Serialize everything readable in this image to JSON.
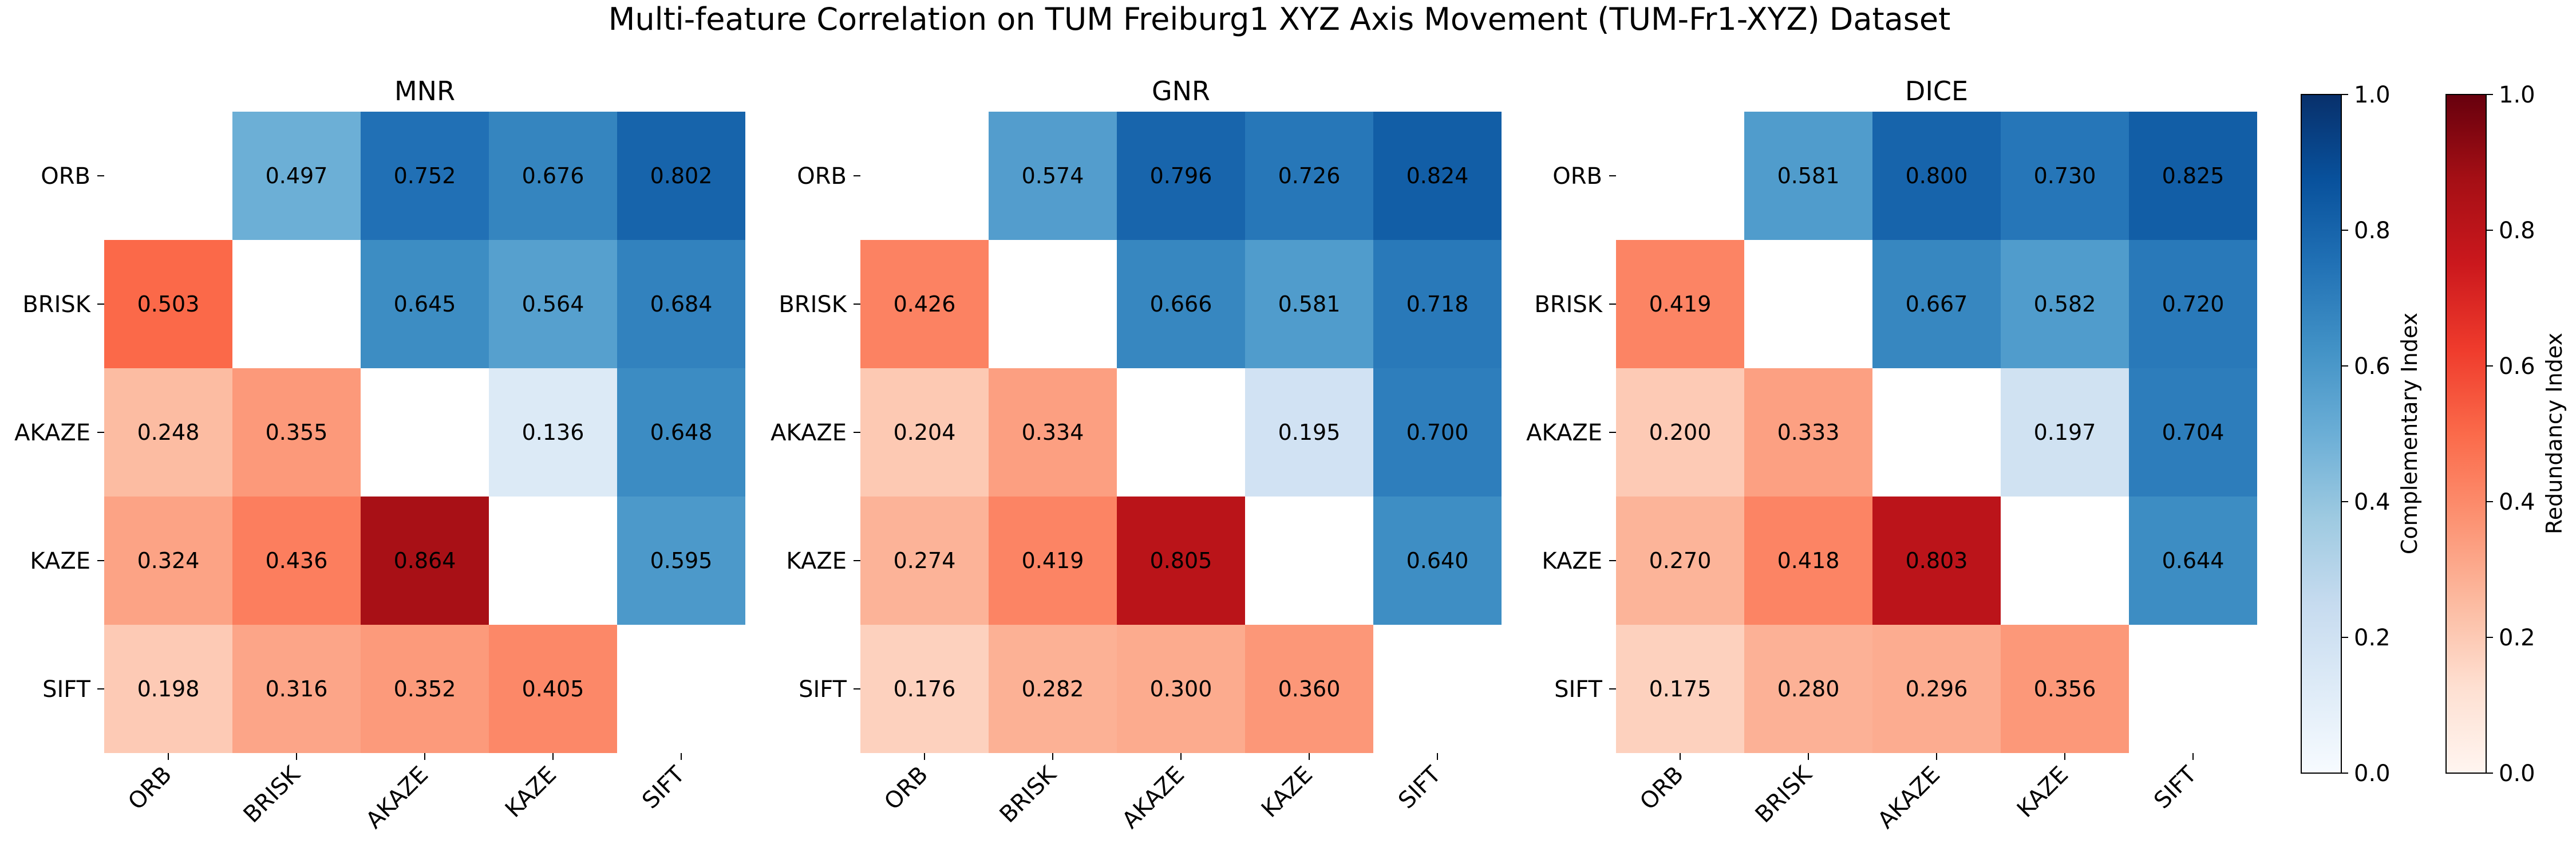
{
  "figure": {
    "title": "Multi-feature Correlation on TUM Freiburg1 XYZ Axis Movement (TUM-Fr1-XYZ) Dataset"
  },
  "chart_data": [
    {
      "type": "heatmap",
      "title": "MNR",
      "rows": [
        "ORB",
        "BRISK",
        "AKAZE",
        "KAZE",
        "SIFT"
      ],
      "cols": [
        "ORB",
        "BRISK",
        "AKAZE",
        "KAZE",
        "SIFT"
      ],
      "values": [
        [
          null,
          0.497,
          0.752,
          0.676,
          0.802
        ],
        [
          0.503,
          null,
          0.645,
          0.564,
          0.684
        ],
        [
          0.248,
          0.355,
          null,
          0.136,
          0.648
        ],
        [
          0.324,
          0.436,
          0.864,
          null,
          0.595
        ],
        [
          0.198,
          0.316,
          0.352,
          0.405,
          null
        ]
      ]
    },
    {
      "type": "heatmap",
      "title": "GNR",
      "rows": [
        "ORB",
        "BRISK",
        "AKAZE",
        "KAZE",
        "SIFT"
      ],
      "cols": [
        "ORB",
        "BRISK",
        "AKAZE",
        "KAZE",
        "SIFT"
      ],
      "values": [
        [
          null,
          0.574,
          0.796,
          0.726,
          0.824
        ],
        [
          0.426,
          null,
          0.666,
          0.581,
          0.718
        ],
        [
          0.204,
          0.334,
          null,
          0.195,
          0.7
        ],
        [
          0.274,
          0.419,
          0.805,
          null,
          0.64
        ],
        [
          0.176,
          0.282,
          0.3,
          0.36,
          null
        ]
      ]
    },
    {
      "type": "heatmap",
      "title": "DICE",
      "rows": [
        "ORB",
        "BRISK",
        "AKAZE",
        "KAZE",
        "SIFT"
      ],
      "cols": [
        "ORB",
        "BRISK",
        "AKAZE",
        "KAZE",
        "SIFT"
      ],
      "values": [
        [
          null,
          0.581,
          0.8,
          0.73,
          0.825
        ],
        [
          0.419,
          null,
          0.667,
          0.582,
          0.72
        ],
        [
          0.2,
          0.333,
          null,
          0.197,
          0.704
        ],
        [
          0.27,
          0.418,
          0.803,
          null,
          0.644
        ],
        [
          0.175,
          0.28,
          0.296,
          0.356,
          null
        ]
      ]
    }
  ],
  "colorbars": [
    {
      "label": "Complementary Index",
      "colormap": "Blues",
      "range": [
        0.0,
        1.0
      ],
      "ticks": [
        "0.0",
        "0.2",
        "0.4",
        "0.6",
        "0.8",
        "1.0"
      ],
      "applies_to": "upper-triangle"
    },
    {
      "label": "Redundancy Index",
      "colormap": "Reds",
      "range": [
        0.0,
        1.0
      ],
      "ticks": [
        "0.0",
        "0.2",
        "0.4",
        "0.6",
        "0.8",
        "1.0"
      ],
      "applies_to": "lower-triangle"
    }
  ]
}
